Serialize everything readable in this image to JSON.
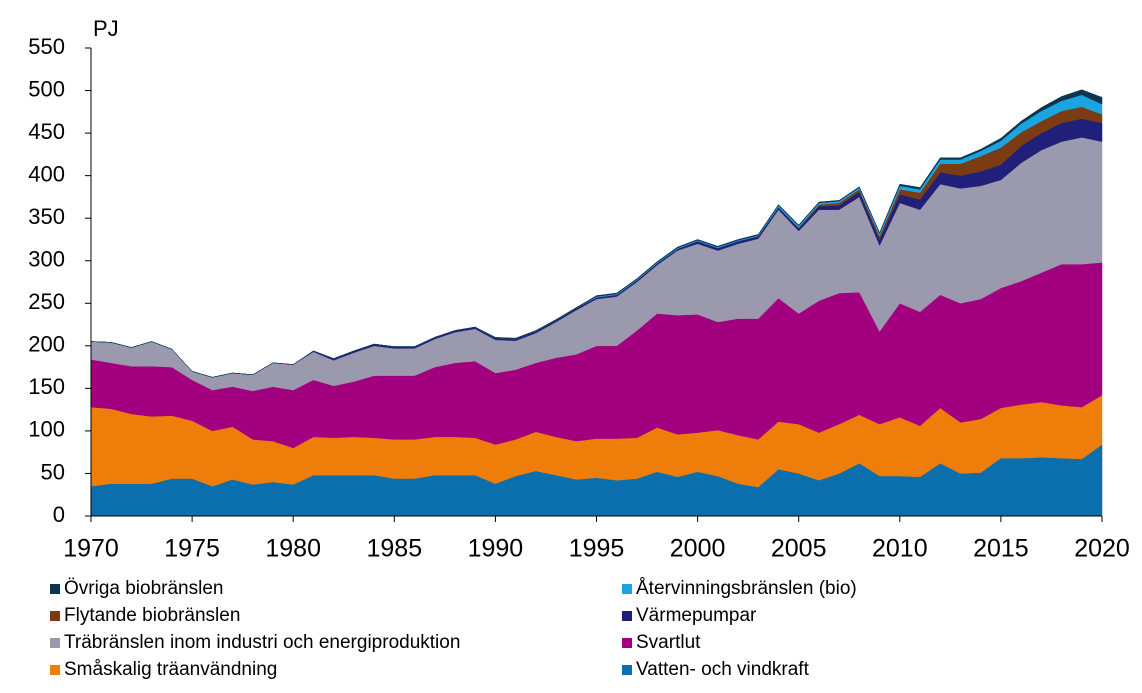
{
  "chart_data": {
    "type": "stacked_area",
    "y_label": "PJ",
    "x": [
      1970,
      1971,
      1972,
      1973,
      1974,
      1975,
      1976,
      1977,
      1978,
      1979,
      1980,
      1981,
      1982,
      1983,
      1984,
      1985,
      1986,
      1987,
      1988,
      1989,
      1990,
      1991,
      1992,
      1993,
      1994,
      1995,
      1996,
      1997,
      1998,
      1999,
      2000,
      2001,
      2002,
      2003,
      2004,
      2005,
      2006,
      2007,
      2008,
      2009,
      2010,
      2011,
      2012,
      2013,
      2014,
      2015,
      2016,
      2017,
      2018,
      2019,
      2020
    ],
    "xlim": [
      1970,
      2020
    ],
    "xticks": [
      1970,
      1975,
      1980,
      1985,
      1990,
      1995,
      2000,
      2005,
      2010,
      2015,
      2020
    ],
    "ylim": [
      0,
      550
    ],
    "yticks": [
      0,
      50,
      100,
      150,
      200,
      250,
      300,
      350,
      400,
      450,
      500,
      550
    ],
    "series": [
      {
        "name": "Vatten- och vindkraft",
        "color": "#0b6fae",
        "values": [
          35,
          38,
          38,
          38,
          44,
          44,
          35,
          43,
          37,
          40,
          37,
          48,
          48,
          48,
          48,
          44,
          44,
          48,
          48,
          48,
          38,
          47,
          53,
          48,
          43,
          45,
          42,
          44,
          52,
          46,
          52,
          47,
          38,
          34,
          55,
          50,
          42,
          50,
          62,
          47,
          47,
          46,
          62,
          50,
          51,
          68,
          68,
          69,
          68,
          67,
          84
        ]
      },
      {
        "name": "Småskalig träanvändning",
        "color": "#ee7d0a",
        "values": [
          93,
          88,
          82,
          79,
          74,
          68,
          65,
          62,
          53,
          48,
          43,
          45,
          44,
          45,
          44,
          46,
          46,
          45,
          45,
          44,
          46,
          43,
          46,
          45,
          45,
          46,
          49,
          48,
          52,
          50,
          46,
          54,
          57,
          56,
          56,
          58,
          56,
          58,
          57,
          61,
          69,
          60,
          65,
          60,
          63,
          59,
          63,
          65,
          62,
          61,
          58
        ]
      },
      {
        "name": "Svartlut",
        "color": "#a3007f",
        "values": [
          56,
          54,
          56,
          59,
          57,
          48,
          48,
          47,
          57,
          64,
          68,
          67,
          61,
          65,
          73,
          75,
          75,
          82,
          87,
          90,
          84,
          82,
          81,
          93,
          102,
          109,
          109,
          126,
          134,
          140,
          139,
          127,
          137,
          142,
          145,
          130,
          155,
          154,
          144,
          109,
          134,
          134,
          133,
          140,
          141,
          141,
          145,
          152,
          166,
          168,
          156
        ]
      },
      {
        "name": "Träbränslen inom industri och energiproduktion",
        "color": "#9b99ad",
        "values": [
          21,
          24,
          22,
          29,
          21,
          10,
          15,
          16,
          19,
          28,
          30,
          33,
          30,
          34,
          35,
          32,
          32,
          33,
          36,
          38,
          39,
          34,
          35,
          42,
          52,
          55,
          58,
          57,
          57,
          76,
          83,
          84,
          88,
          94,
          104,
          97,
          107,
          98,
          112,
          101,
          118,
          120,
          130,
          135,
          133,
          127,
          139,
          144,
          144,
          149,
          142
        ]
      },
      {
        "name": "Värmepumpar",
        "color": "#20207a",
        "values": [
          0,
          0,
          0,
          0,
          0,
          0,
          0,
          0,
          0,
          0,
          0,
          1,
          2,
          2,
          2,
          2,
          2,
          2,
          2,
          2,
          2,
          2,
          2,
          2,
          2,
          2,
          2,
          2,
          2,
          2,
          3,
          3,
          3,
          3,
          3,
          3,
          4,
          5,
          6,
          7,
          10,
          12,
          14,
          15,
          17,
          18,
          20,
          20,
          22,
          22,
          22
        ]
      },
      {
        "name": "Flytande biobränslen",
        "color": "#7a3c10",
        "values": [
          0,
          0,
          0,
          0,
          0,
          0,
          0,
          0,
          0,
          0,
          0,
          0,
          0,
          0,
          0,
          0,
          0,
          0,
          0,
          0,
          0,
          0,
          0,
          0,
          0,
          0,
          0,
          0,
          0,
          0,
          0,
          0,
          0,
          0,
          0,
          1,
          2,
          3,
          3,
          4,
          6,
          8,
          10,
          14,
          18,
          20,
          16,
          14,
          14,
          14,
          10
        ]
      },
      {
        "name": "Återvinningsbränslen (bio)",
        "color": "#1ba4e0",
        "values": [
          0,
          0,
          0,
          0,
          0,
          0,
          0,
          0,
          0,
          0,
          0,
          0,
          0,
          0,
          0,
          0,
          0,
          0,
          0,
          0,
          0,
          0,
          0,
          0,
          0,
          1,
          1,
          1,
          1,
          1,
          1,
          1,
          1,
          1,
          2,
          2,
          2,
          2,
          2,
          3,
          4,
          4,
          5,
          5,
          6,
          8,
          10,
          12,
          12,
          14,
          12
        ]
      },
      {
        "name": "Övriga biobränslen",
        "color": "#0c3550",
        "values": [
          0,
          0,
          0,
          0,
          0,
          0,
          0,
          0,
          0,
          0,
          0,
          0,
          0,
          0,
          0,
          0,
          0,
          0,
          0,
          0,
          1,
          1,
          1,
          1,
          1,
          1,
          1,
          1,
          1,
          1,
          1,
          1,
          1,
          1,
          1,
          1,
          1,
          1,
          1,
          1,
          2,
          2,
          2,
          2,
          2,
          3,
          3,
          4,
          5,
          6,
          8
        ]
      }
    ]
  }
}
